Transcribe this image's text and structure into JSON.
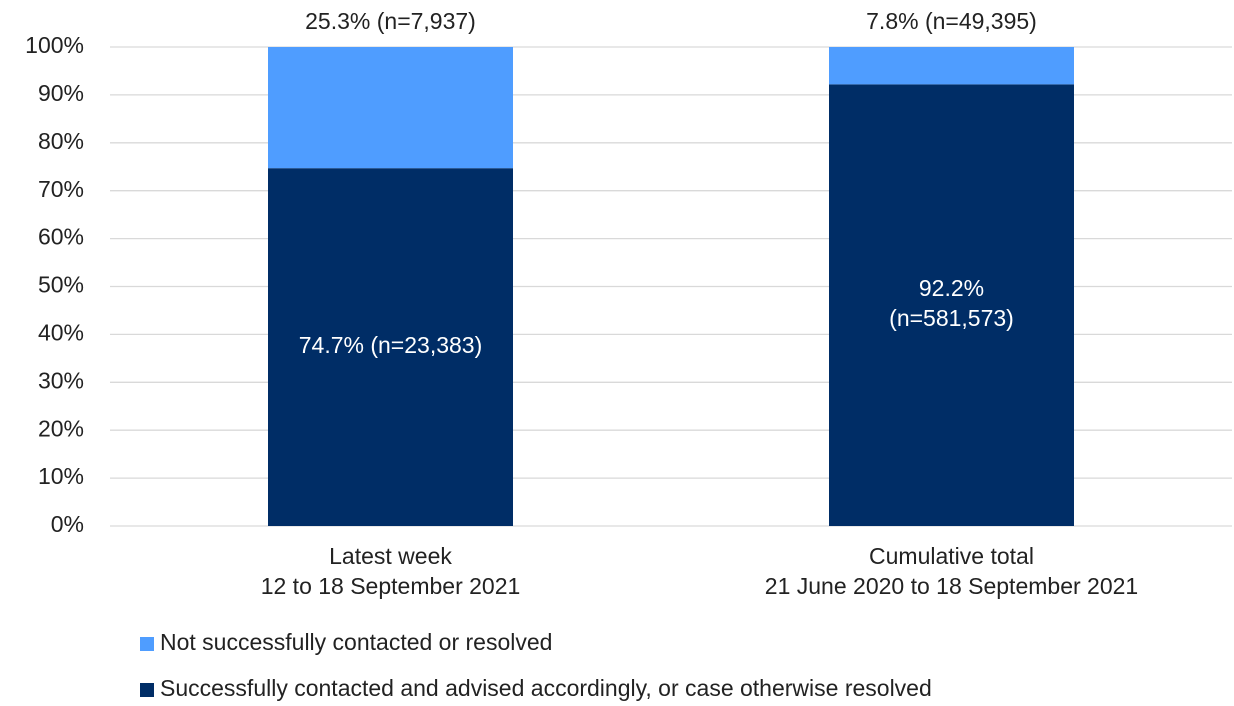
{
  "chart_data": {
    "type": "stacked_bar",
    "categories": [
      "Latest week\n12 to 18 September 2021",
      "Cumulative total\n21 June 2020 to 18 September 2021"
    ],
    "series": [
      {
        "name": "Successfully contacted and advised accordingly, or case otherwise resolved",
        "color": "#002d66",
        "values": [
          74.7,
          92.2
        ],
        "value_labels": [
          "74.7% (n=23,383)",
          "92.2%\n(n=581,573)"
        ]
      },
      {
        "name": "Not successfully contacted or resolved",
        "color": "#4f9dff",
        "values": [
          25.3,
          7.8
        ],
        "value_labels": [
          "25.3% (n=7,937)",
          "7.8% (n=49,395)"
        ]
      }
    ],
    "ylim": [
      0,
      100
    ],
    "yticks": [
      {
        "value": 0,
        "label": "0%"
      },
      {
        "value": 10,
        "label": "10%"
      },
      {
        "value": 20,
        "label": "20%"
      },
      {
        "value": 30,
        "label": "30%"
      },
      {
        "value": 40,
        "label": "40%"
      },
      {
        "value": 50,
        "label": "50%"
      },
      {
        "value": 60,
        "label": "60%"
      },
      {
        "value": 70,
        "label": "70%"
      },
      {
        "value": 80,
        "label": "80%"
      },
      {
        "value": 90,
        "label": "90%"
      },
      {
        "value": 100,
        "label": "100%"
      }
    ],
    "grid": true
  }
}
